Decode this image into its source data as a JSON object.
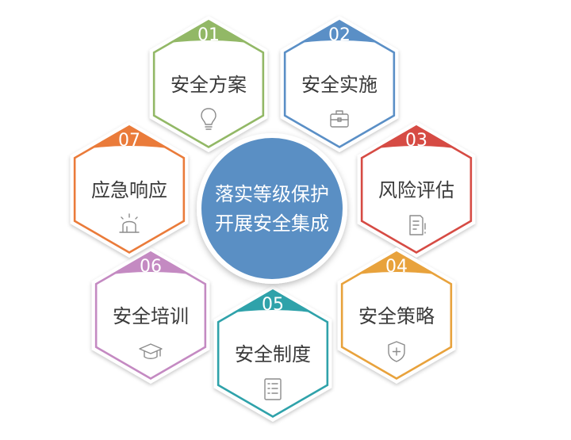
{
  "center": {
    "line1": "落实等级保护",
    "line2": "开展安全集成",
    "color": "#5a8fc4"
  },
  "items": [
    {
      "num": "01",
      "label": "安全方案",
      "color": "#92b866",
      "icon": "lightbulb-icon"
    },
    {
      "num": "02",
      "label": "安全实施",
      "color": "#5a8fc6",
      "icon": "toolbox-icon"
    },
    {
      "num": "03",
      "label": "风险评估",
      "color": "#d64b44",
      "icon": "document-alert-icon"
    },
    {
      "num": "04",
      "label": "安全策略",
      "color": "#e8a23c",
      "icon": "shield-icon"
    },
    {
      "num": "05",
      "label": "安全制度",
      "color": "#2fa2aa",
      "icon": "list-document-icon"
    },
    {
      "num": "06",
      "label": "安全培训",
      "color": "#c48ac2",
      "icon": "graduation-cap-icon"
    },
    {
      "num": "07",
      "label": "应急响应",
      "color": "#ea7b3a",
      "icon": "alarm-siren-icon"
    }
  ]
}
